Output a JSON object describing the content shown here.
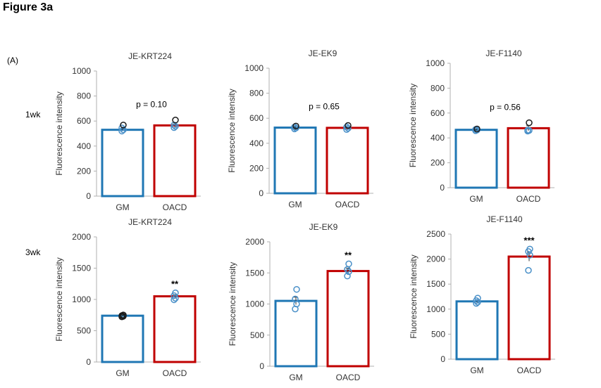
{
  "figure_title": "Figure 3a",
  "panel_label": "(A)",
  "row_labels": [
    "1wk",
    "3wk"
  ],
  "colors": {
    "gm": "#1f77b4",
    "oacd": "#c00000",
    "point_fill": "#ffffff",
    "dark_point": "#1a1a1a"
  },
  "chart_data": [
    {
      "type": "bar",
      "title": "JE-KRT224",
      "ylabel": "Fluorescence intensity",
      "categories": [
        "GM",
        "OACD"
      ],
      "values": [
        530,
        565
      ],
      "errors": [
        8,
        12
      ],
      "ylim": [
        0,
        1000
      ],
      "yticks": [
        "0",
        "200",
        "400",
        "600",
        "800",
        "1000"
      ],
      "points": [
        [
          520,
          530,
          545,
          568
        ],
        [
          548,
          558,
          568,
          608
        ]
      ],
      "annotation": "p = 0.10",
      "grid": false
    },
    {
      "type": "bar",
      "title": "JE-EK9",
      "ylabel": "Fluorescence intensity",
      "categories": [
        "GM",
        "OACD"
      ],
      "values": [
        525,
        523
      ],
      "errors": [
        5,
        8
      ],
      "ylim": [
        0,
        1000
      ],
      "yticks": [
        "0",
        "200",
        "400",
        "600",
        "800",
        "1000"
      ],
      "points": [
        [
          515,
          522,
          530,
          537
        ],
        [
          510,
          520,
          530,
          542
        ]
      ],
      "annotation": "p = 0.65",
      "grid": false
    },
    {
      "type": "bar",
      "title": "JE-F1140",
      "ylabel": "Fluorescence intensity",
      "categories": [
        "GM",
        "OACD"
      ],
      "values": [
        465,
        478
      ],
      "errors": [
        5,
        20
      ],
      "ylim": [
        0,
        1000
      ],
      "yticks": [
        "0",
        "200",
        "400",
        "600",
        "800",
        "1000"
      ],
      "points": [
        [
          458,
          463,
          468,
          472
        ],
        [
          455,
          460,
          462,
          522
        ]
      ],
      "annotation": "p = 0.56",
      "grid": false
    },
    {
      "type": "bar",
      "title": "JE-KRT224",
      "ylabel": "Fluorescence intensity",
      "categories": [
        "GM",
        "OACD"
      ],
      "values": [
        740,
        1050
      ],
      "errors": [
        10,
        25
      ],
      "ylim": [
        0,
        2000
      ],
      "yticks": [
        "0",
        "500",
        "1000",
        "1500",
        "2000"
      ],
      "points": [
        [
          722,
          732,
          742,
          752
        ],
        [
          995,
          1020,
          1060,
          1105
        ]
      ],
      "annotation": "**",
      "grid": false
    },
    {
      "type": "bar",
      "title": "JE-EK9",
      "ylabel": "Fluorescence intensity",
      "categories": [
        "GM",
        "OACD"
      ],
      "values": [
        1050,
        1530
      ],
      "errors": [
        60,
        45
      ],
      "ylim": [
        0,
        2000
      ],
      "yticks": [
        "0",
        "500",
        "1000",
        "1500",
        "2000"
      ],
      "points": [
        [
          920,
          1000,
          1080,
          1235
        ],
        [
          1450,
          1520,
          1555,
          1645
        ]
      ],
      "annotation": "**",
      "grid": false
    },
    {
      "type": "bar",
      "title": "JE-F1140",
      "ylabel": "Fluorescence intensity",
      "categories": [
        "GM",
        "OACD"
      ],
      "values": [
        1155,
        2050
      ],
      "errors": [
        20,
        90
      ],
      "ylim": [
        0,
        2500
      ],
      "yticks": [
        "0",
        "500",
        "1000",
        "1500",
        "2000",
        "2500"
      ],
      "points": [
        [
          1115,
          1140,
          1170,
          1220
        ],
        [
          1775,
          2080,
          2150,
          2200
        ]
      ],
      "annotation": "***",
      "grid": false
    }
  ]
}
